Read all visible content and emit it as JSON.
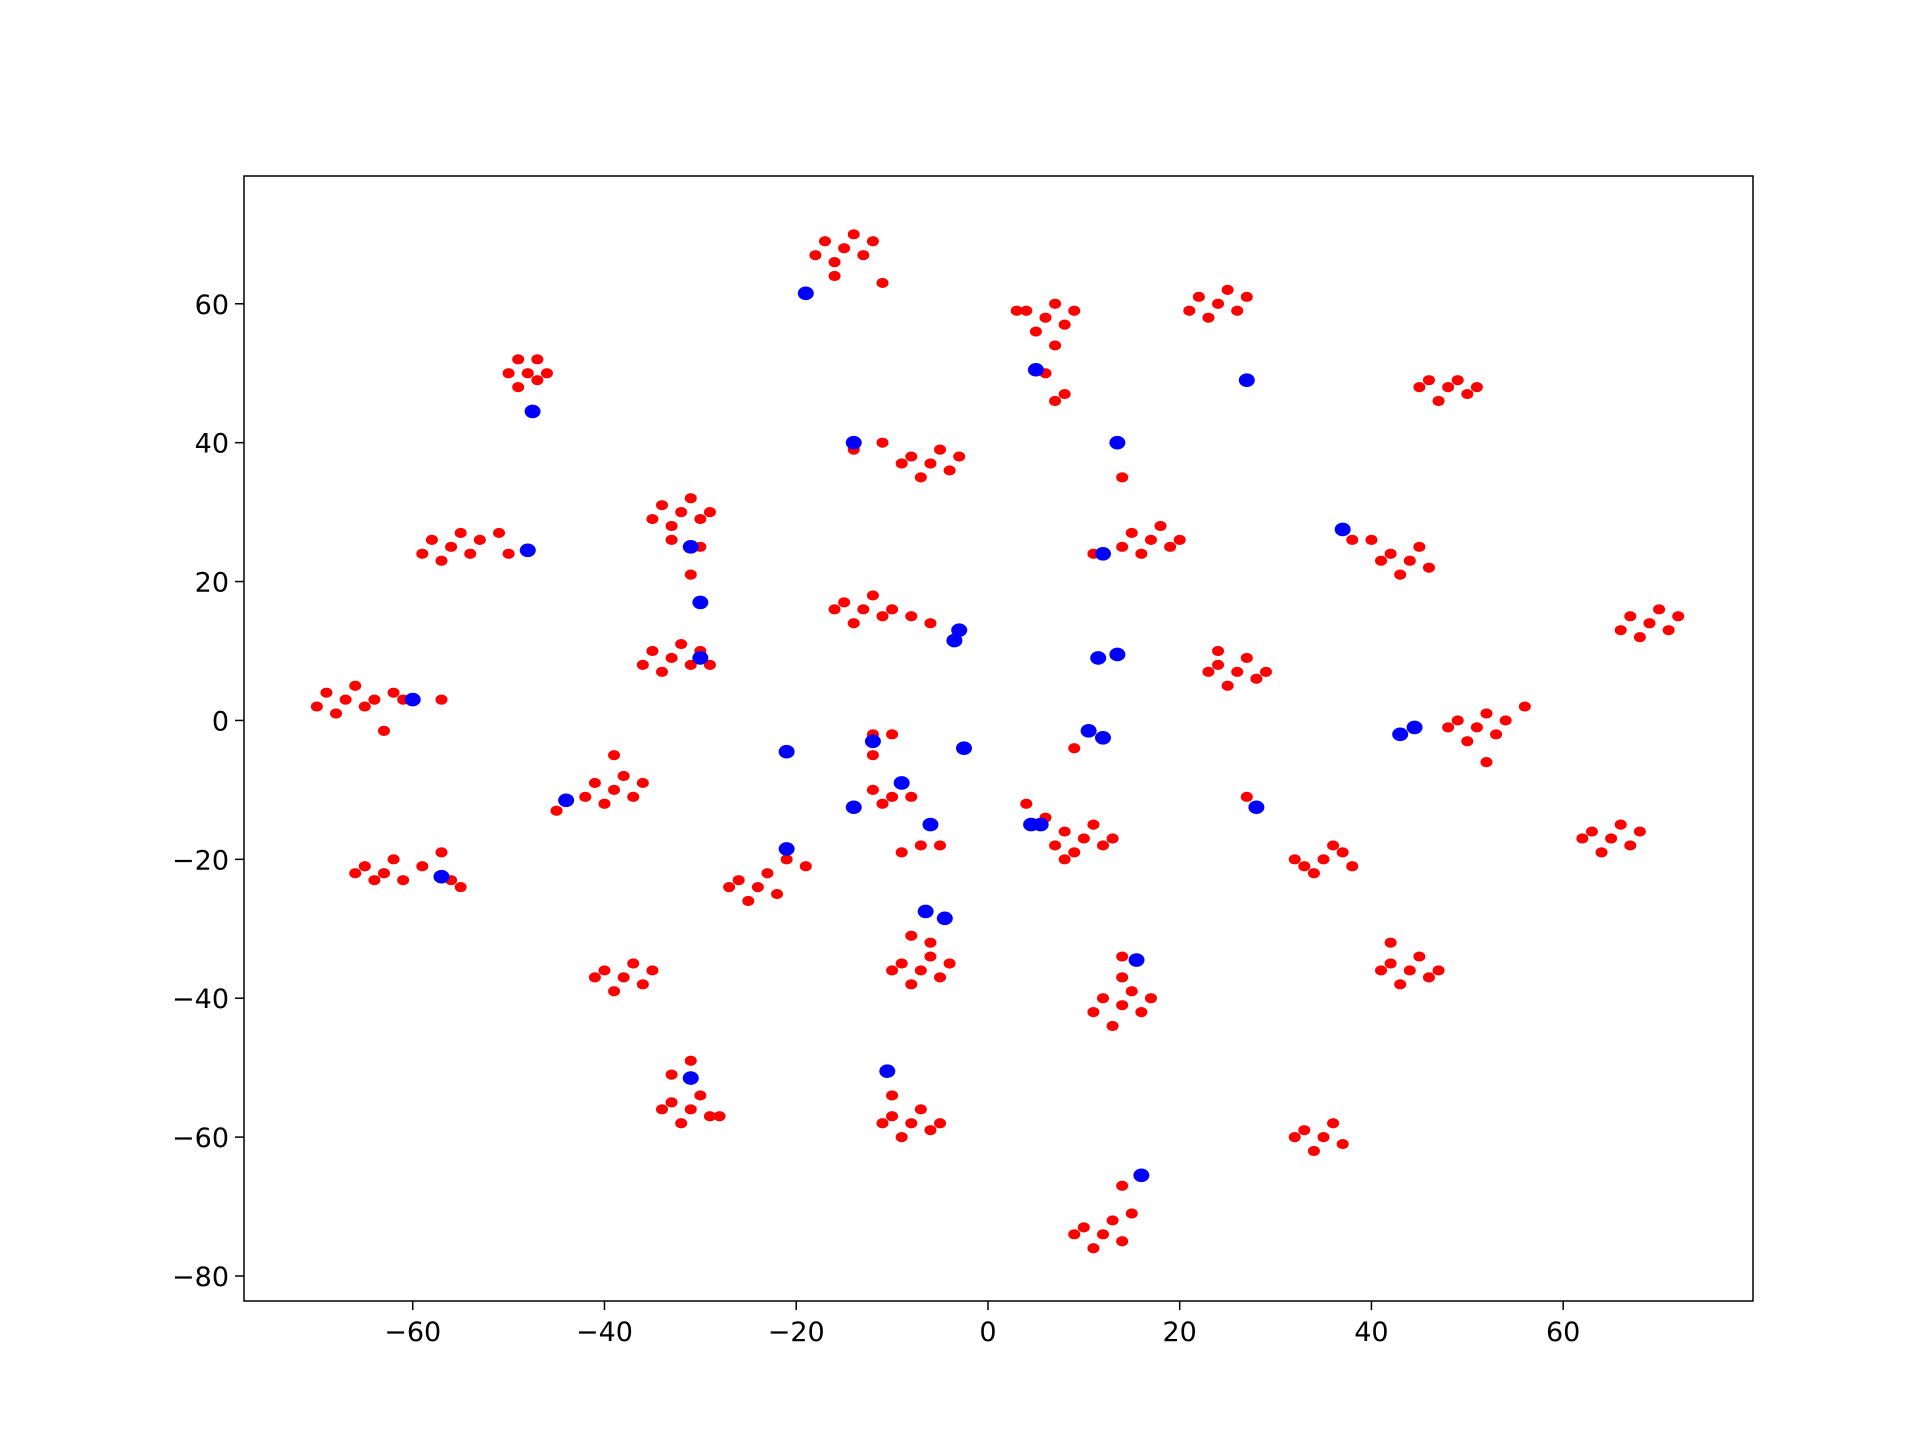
{
  "chart_data": {
    "type": "scatter",
    "xlim": [
      -77.6,
      79.8
    ],
    "ylim": [
      -83.6,
      78.4
    ],
    "xticks": [
      {
        "value": -60,
        "label": "−60"
      },
      {
        "value": -40,
        "label": "−40"
      },
      {
        "value": -20,
        "label": "−20"
      },
      0,
      20,
      40,
      60
    ],
    "yticks": [
      {
        "value": -80,
        "label": "−80"
      },
      {
        "value": -60,
        "label": "−60"
      },
      {
        "value": -40,
        "label": "−40"
      },
      {
        "value": -20,
        "label": "−20"
      },
      0,
      20,
      40,
      60
    ],
    "series": [
      {
        "color": "#ff0000",
        "x": [
          -15,
          -17,
          -13,
          -16,
          -14,
          -18,
          -12,
          -11,
          -16,
          6,
          4,
          8,
          5,
          7,
          3,
          9,
          7,
          6,
          7,
          8,
          24,
          22,
          26,
          23,
          25,
          21,
          27,
          -48,
          -49,
          -47,
          -49,
          -47,
          -50,
          -46,
          48,
          46,
          50,
          47,
          49,
          45,
          51,
          -6,
          -8,
          -4,
          -7,
          -5,
          -9,
          -3,
          -11,
          -14,
          -32,
          -34,
          -30,
          -33,
          -31,
          -35,
          -29,
          -30,
          -31,
          -33,
          -56,
          -58,
          -54,
          -57,
          -55,
          -59,
          -53,
          -51,
          -50,
          17,
          15,
          19,
          16,
          18,
          14,
          20,
          14,
          11,
          44,
          42,
          46,
          43,
          45,
          41,
          38,
          40,
          -13,
          -15,
          -11,
          -14,
          -12,
          -16,
          -10,
          -8,
          -6,
          69,
          67,
          71,
          68,
          70,
          66,
          72,
          -33,
          -35,
          -31,
          -34,
          -32,
          -36,
          -30,
          -29,
          26,
          24,
          28,
          25,
          27,
          23,
          29,
          24,
          -67,
          -69,
          -65,
          -68,
          -66,
          -70,
          -64,
          -61,
          -57,
          -63,
          -62,
          51,
          49,
          53,
          50,
          52,
          48,
          54,
          56,
          52,
          -39,
          -41,
          -37,
          -40,
          -38,
          -42,
          -36,
          -45,
          -39,
          -10,
          -12,
          -8,
          -11,
          -7,
          -9,
          -5,
          -12,
          -10,
          -12,
          10,
          8,
          12,
          9,
          11,
          7,
          13,
          4,
          6,
          8,
          9,
          35,
          33,
          37,
          34,
          36,
          32,
          38,
          27,
          65,
          63,
          67,
          64,
          66,
          62,
          68,
          -63,
          -65,
          -61,
          -64,
          -62,
          -66,
          -59,
          -56,
          -55,
          -57,
          -24,
          -26,
          -22,
          -25,
          -23,
          -27,
          -21,
          -19,
          -7,
          -9,
          -5,
          -8,
          -6,
          -10,
          -4,
          -8,
          -6,
          14,
          12,
          16,
          13,
          15,
          11,
          17,
          14,
          14,
          -38,
          -40,
          -36,
          -39,
          -37,
          -41,
          -35,
          44,
          42,
          46,
          43,
          45,
          41,
          47,
          42,
          -31,
          -33,
          -29,
          -32,
          -30,
          -34,
          -28,
          -31,
          -33,
          -8,
          -10,
          -6,
          -9,
          -7,
          -11,
          -5,
          -10,
          35,
          33,
          37,
          34,
          36,
          32,
          12,
          10,
          14,
          11,
          13,
          9,
          14,
          15
        ],
        "y": [
          68,
          69,
          67,
          66,
          70,
          67,
          69,
          63,
          64,
          58,
          59,
          57,
          56,
          60,
          59,
          59,
          54,
          50,
          46,
          47,
          60,
          61,
          59,
          58,
          62,
          59,
          61,
          50,
          52,
          49,
          48,
          52,
          50,
          50,
          48,
          49,
          47,
          46,
          49,
          48,
          48,
          37,
          38,
          36,
          35,
          39,
          37,
          38,
          40,
          39,
          30,
          31,
          29,
          28,
          32,
          29,
          30,
          25,
          21,
          26,
          25,
          26,
          24,
          23,
          27,
          24,
          26,
          27,
          24,
          26,
          27,
          25,
          24,
          28,
          25,
          26,
          35,
          24,
          23,
          24,
          22,
          21,
          25,
          23,
          26,
          26,
          16,
          17,
          15,
          14,
          18,
          16,
          16,
          15,
          14,
          14,
          15,
          13,
          12,
          16,
          13,
          15,
          9,
          10,
          8,
          7,
          11,
          8,
          10,
          8,
          7,
          8,
          6,
          5,
          9,
          7,
          7,
          10,
          3,
          4,
          2,
          1,
          5,
          2,
          3,
          3,
          3,
          -1.5,
          4,
          -1,
          0,
          -2,
          -3,
          1,
          -1,
          0,
          2,
          -6,
          -10,
          -9,
          -11,
          -12,
          -8,
          -11,
          -9,
          -13,
          -5,
          -11,
          -10,
          -11,
          -12,
          -18,
          -19,
          -18,
          -2,
          -2,
          -5,
          -17,
          -16,
          -18,
          -19,
          -15,
          -18,
          -17,
          -12,
          -14,
          -20,
          -4,
          -20,
          -21,
          -19,
          -22,
          -18,
          -20,
          -21,
          -11,
          -17,
          -16,
          -18,
          -19,
          -15,
          -17,
          -16,
          -22,
          -21,
          -23,
          -23,
          -20,
          -22,
          -21,
          -23,
          -24,
          -19,
          -24,
          -23,
          -25,
          -26,
          -22,
          -24,
          -20,
          -21,
          -36,
          -35,
          -37,
          -38,
          -34,
          -36,
          -35,
          -31,
          -32,
          -41,
          -40,
          -42,
          -44,
          -39,
          -42,
          -40,
          -37,
          -34,
          -37,
          -36,
          -38,
          -39,
          -35,
          -37,
          -36,
          -36,
          -35,
          -37,
          -38,
          -34,
          -36,
          -36,
          -32,
          -56,
          -55,
          -57,
          -58,
          -54,
          -56,
          -57,
          -49,
          -51,
          -58,
          -57,
          -59,
          -60,
          -56,
          -58,
          -58,
          -54,
          -60,
          -59,
          -61,
          -62,
          -58,
          -60,
          -74,
          -73,
          -75,
          -76,
          -72,
          -74,
          -67,
          -71
        ]
      },
      {
        "color": "#0000ff",
        "x": [
          -19,
          5,
          27,
          -47.5,
          -14,
          13.5,
          -48,
          -31,
          -30,
          37,
          12,
          -3,
          -3.5,
          13.5,
          11.5,
          -30,
          -60,
          44.5,
          43,
          -21,
          -2.5,
          10.5,
          12,
          -12,
          -9,
          -44,
          -14,
          28,
          -6,
          4.5,
          5.5,
          -21,
          -57,
          -6.5,
          -4.5,
          15.5,
          -10.5,
          -31,
          16
        ],
        "y": [
          61.5,
          50.5,
          49,
          44.5,
          40,
          40,
          24.5,
          25,
          17,
          27.5,
          24,
          13,
          11.5,
          9.5,
          9,
          9,
          3,
          -1,
          -2,
          -4.5,
          -4,
          -1.5,
          -2.5,
          -3,
          -9,
          -11.5,
          -12.5,
          -12.5,
          -15,
          -15,
          -15,
          -18.5,
          -22.5,
          -27.5,
          -28.5,
          -34.5,
          -50.5,
          -51.5,
          -65.5
        ]
      }
    ]
  }
}
